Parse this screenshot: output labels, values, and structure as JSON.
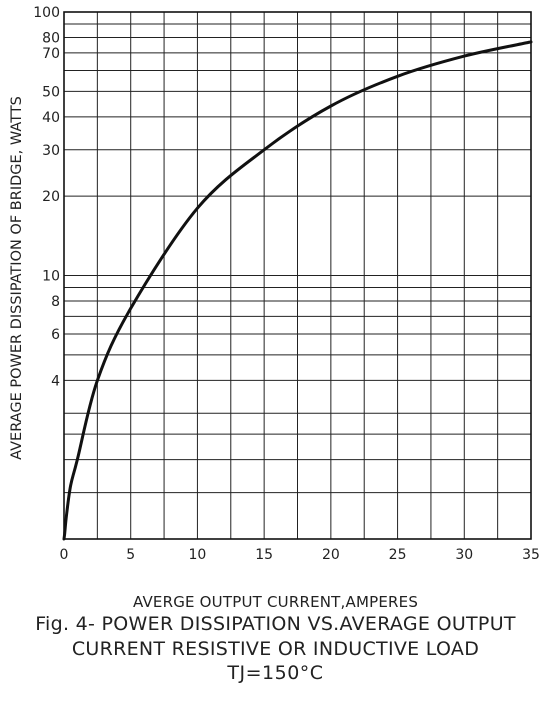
{
  "chart_data": {
    "type": "line",
    "title": "Fig. 4- POWER DISSIPATION  VS.AVERAGE OUTPUT",
    "subtitle": "CURRENT RESISTIVE OR INDUCTIVE LOAD",
    "condition": "TJ=150°C",
    "xlabel": "AVERGE OUTPUT CURRENT,AMPERES",
    "ylabel": "AVERAGE POWER DISSIPATION OF BRIDGE, WATTS",
    "x_scale": "linear",
    "y_scale": "log",
    "xlim": [
      0,
      35
    ],
    "ylim": [
      1,
      100
    ],
    "x_ticks": [
      0,
      5,
      10,
      15,
      20,
      25,
      30,
      35
    ],
    "x_tick_labels": [
      "0",
      "5",
      "10",
      "15",
      "20",
      "25",
      "30",
      "35"
    ],
    "y_tick_values": [
      4,
      6,
      8,
      10,
      20,
      30,
      40,
      50,
      70,
      80,
      100
    ],
    "y_tick_labels": [
      "4",
      "6",
      "8",
      "10",
      "20",
      "30",
      "40",
      "50",
      "70",
      "80",
      "100"
    ],
    "y_gridlines": [
      1.5,
      2,
      2.5,
      3,
      4,
      5,
      6,
      7,
      8,
      9,
      10,
      20,
      30,
      40,
      50,
      60,
      70,
      80,
      90,
      100
    ],
    "x_gridlines": [
      2.5,
      5,
      7.5,
      10,
      12.5,
      15,
      17.5,
      20,
      22.5,
      25,
      27.5,
      30,
      32.5,
      35
    ],
    "grid": true,
    "series": [
      {
        "x": [
          0.05,
          0.2,
          0.5,
          1,
          2.5,
          5,
          10,
          15,
          20,
          25,
          30,
          35
        ],
        "values": [
          1.05,
          1.25,
          1.6,
          2.0,
          4.0,
          7.5,
          18,
          30,
          44,
          57,
          68,
          77
        ]
      }
    ]
  }
}
